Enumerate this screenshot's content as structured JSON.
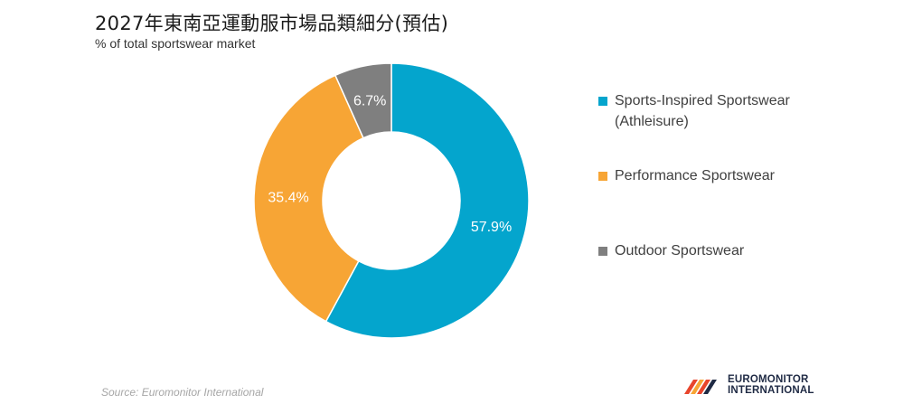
{
  "title": "2027年東南亞運動服市場品類細分(預估)",
  "subtitle": "% of total sportswear market",
  "chart_data": {
    "type": "pie",
    "donut": true,
    "categories": [
      "Sports-Inspired Sportswear (Athleisure)",
      "Performance Sportswear",
      "Outdoor Sportswear"
    ],
    "values": [
      57.9,
      35.4,
      6.7
    ],
    "labels": [
      "57.9%",
      "35.4%",
      "6.7%"
    ],
    "colors": [
      "#04a5cd",
      "#f7a535",
      "#7f7f7f"
    ],
    "legend_position": "right"
  },
  "legend": {
    "items": [
      {
        "line1": "Sports-Inspired Sportswear",
        "line2": "(Athleisure)",
        "color": "#04a5cd"
      },
      {
        "line1": "Performance Sportswear",
        "line2": "",
        "color": "#f7a535"
      },
      {
        "line1": "Outdoor Sportswear",
        "line2": "",
        "color": "#7f7f7f"
      }
    ]
  },
  "source": "Source: Euromonitor International",
  "logo": {
    "line1": "EUROMONITOR",
    "line2": "INTERNATIONAL"
  }
}
